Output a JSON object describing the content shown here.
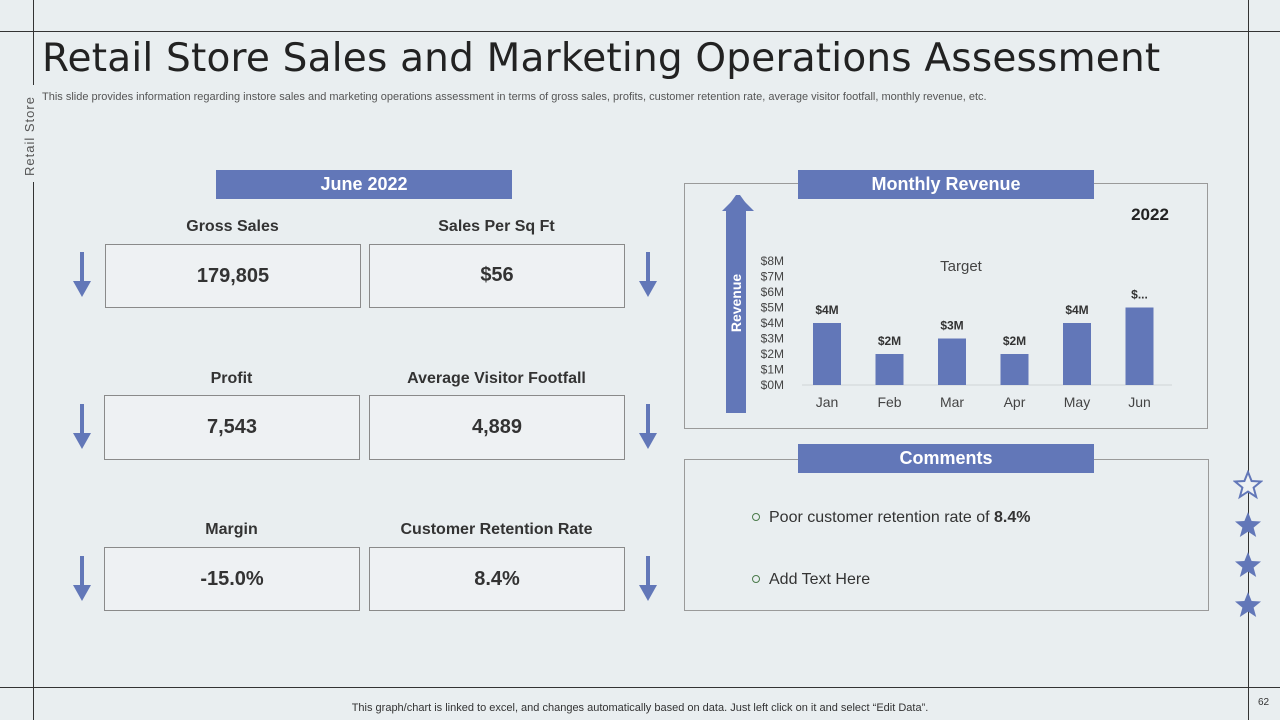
{
  "slide": {
    "title": "Retail Store Sales and Marketing Operations Assessment",
    "subtitle": "This slide provides information regarding instore sales and marketing operations assessment in terms of gross sales, profits, customer retention rate, average visitor footfall, monthly revenue, etc.",
    "side_label": "Retail Store",
    "footer_note": "This graph/chart is linked to excel,  and changes automatically based on data. Just left click on it and select “Edit Data”.",
    "page_number": "62"
  },
  "metrics": {
    "header": "June 2022",
    "items": [
      {
        "label": "Gross Sales",
        "value": "179,805"
      },
      {
        "label": "Sales Per Sq Ft",
        "value": "$56"
      },
      {
        "label": "Profit",
        "value": "7,543"
      },
      {
        "label": "Average Visitor Footfall",
        "value": "4,889"
      },
      {
        "label": "Margin",
        "value": "-15.0%"
      },
      {
        "label": "Customer Retention Rate",
        "value": "8.4%"
      }
    ]
  },
  "revenue": {
    "header": "Monthly Revenue",
    "year": "2022",
    "axis_arrow_label": "Revenue"
  },
  "chart_data": {
    "type": "bar",
    "title": "",
    "series_label": "Target",
    "categories": [
      "Jan",
      "Feb",
      "Mar",
      "Apr",
      "May",
      "Jun"
    ],
    "values": [
      4,
      2,
      3,
      2,
      4,
      5
    ],
    "data_labels": [
      "$4M",
      "$2M",
      "$3M",
      "$2M",
      "$4M",
      "$..."
    ],
    "y_ticks": [
      "$0M",
      "$1M",
      "$2M",
      "$3M",
      "$4M",
      "$5M",
      "$6M",
      "$7M",
      "$8M"
    ],
    "ylim": [
      0,
      8
    ],
    "bar_color": "#6277b8",
    "grid": false
  },
  "comments": {
    "header": "Comments",
    "items": [
      {
        "text": "Poor customer retention rate of ",
        "bold": "8.4%"
      },
      {
        "text": "Add Text Here",
        "bold": ""
      }
    ]
  },
  "decor": {
    "star_icons": [
      "star-outline-icon",
      "star-icon",
      "star-icon",
      "star-icon"
    ],
    "accent_color": "#6277b8"
  }
}
